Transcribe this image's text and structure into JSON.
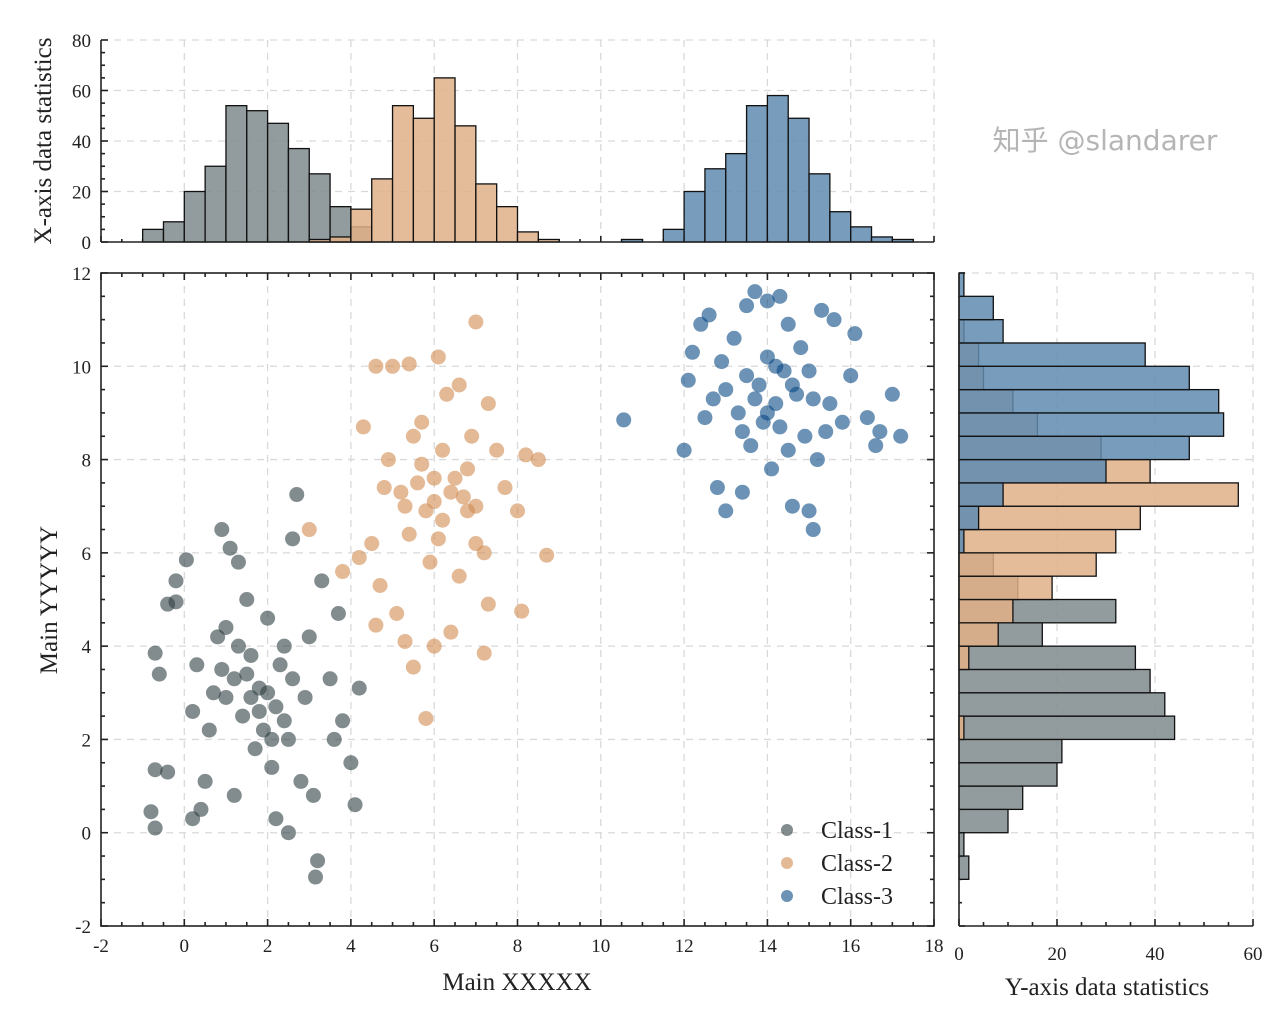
{
  "chart_data": [
    {
      "type": "scatter",
      "xlabel": "Main XXXXX",
      "ylabel": "Main YYYYY",
      "xlim": [
        -2,
        18
      ],
      "ylim": [
        -2,
        12
      ],
      "xticks": [
        "-2",
        "0",
        "2",
        "4",
        "6",
        "8",
        "10",
        "12",
        "14",
        "16",
        "18"
      ],
      "yticks": [
        "-2",
        "0",
        "2",
        "4",
        "6",
        "8",
        "10",
        "12"
      ],
      "grid": true,
      "legend_position": "bottom-right",
      "series": [
        {
          "name": "Class-1",
          "color": "#2e3f42",
          "points": [
            [
              -0.7,
              0.1
            ],
            [
              -0.8,
              0.45
            ],
            [
              -0.7,
              1.35
            ],
            [
              -0.4,
              1.3
            ],
            [
              -0.7,
              3.85
            ],
            [
              -0.6,
              3.4
            ],
            [
              -0.4,
              4.9
            ],
            [
              -0.2,
              4.95
            ],
            [
              -0.2,
              5.4
            ],
            [
              0.05,
              5.85
            ],
            [
              0.2,
              0.3
            ],
            [
              0.2,
              2.6
            ],
            [
              0.4,
              0.5
            ],
            [
              0.5,
              1.1
            ],
            [
              0.3,
              3.6
            ],
            [
              0.8,
              4.2
            ],
            [
              0.9,
              6.5
            ],
            [
              1.1,
              6.1
            ],
            [
              1.3,
              5.8
            ],
            [
              1.5,
              5.0
            ],
            [
              1.0,
              2.9
            ],
            [
              1.2,
              3.3
            ],
            [
              1.4,
              2.5
            ],
            [
              1.6,
              3.8
            ],
            [
              1.8,
              3.1
            ],
            [
              1.9,
              2.2
            ],
            [
              2.0,
              4.6
            ],
            [
              2.1,
              1.4
            ],
            [
              2.2,
              0.3
            ],
            [
              2.3,
              3.6
            ],
            [
              2.5,
              2.0
            ],
            [
              2.6,
              6.3
            ],
            [
              2.7,
              7.25
            ],
            [
              2.5,
              0.0
            ],
            [
              2.8,
              1.1
            ],
            [
              2.9,
              2.9
            ],
            [
              3.1,
              0.8
            ],
            [
              3.2,
              -0.6
            ],
            [
              3.15,
              -0.95
            ],
            [
              3.3,
              5.4
            ],
            [
              3.5,
              3.3
            ],
            [
              3.6,
              2.0
            ],
            [
              3.7,
              4.7
            ],
            [
              3.8,
              2.4
            ],
            [
              4.0,
              1.5
            ],
            [
              4.1,
              0.6
            ],
            [
              4.2,
              3.1
            ],
            [
              1.0,
              4.4
            ],
            [
              0.7,
              3.0
            ],
            [
              2.4,
              4.0
            ],
            [
              1.7,
              1.8
            ],
            [
              3.0,
              4.2
            ],
            [
              1.2,
              0.8
            ],
            [
              0.6,
              2.2
            ],
            [
              2.2,
              2.7
            ],
            [
              1.5,
              3.4
            ],
            [
              2.0,
              3.0
            ],
            [
              1.8,
              2.6
            ],
            [
              2.4,
              2.4
            ],
            [
              1.3,
              4.0
            ],
            [
              2.6,
              3.3
            ],
            [
              0.9,
              3.5
            ],
            [
              2.1,
              2.0
            ],
            [
              1.6,
              2.9
            ]
          ]
        },
        {
          "name": "Class-2",
          "color": "#d08b50",
          "points": [
            [
              5.8,
              2.45
            ],
            [
              5.5,
              3.55
            ],
            [
              5.3,
              4.1
            ],
            [
              6.0,
              4.0
            ],
            [
              6.4,
              4.3
            ],
            [
              7.2,
              3.85
            ],
            [
              7.3,
              4.9
            ],
            [
              8.1,
              4.75
            ],
            [
              4.6,
              4.45
            ],
            [
              3.0,
              6.5
            ],
            [
              3.8,
              5.6
            ],
            [
              4.2,
              5.9
            ],
            [
              4.5,
              6.2
            ],
            [
              4.8,
              7.4
            ],
            [
              4.9,
              8.0
            ],
            [
              4.6,
              10.0
            ],
            [
              5.0,
              10.0
            ],
            [
              5.4,
              10.05
            ],
            [
              6.1,
              10.2
            ],
            [
              7.0,
              10.95
            ],
            [
              5.7,
              8.8
            ],
            [
              6.3,
              9.4
            ],
            [
              6.6,
              9.6
            ],
            [
              6.9,
              8.5
            ],
            [
              7.3,
              9.2
            ],
            [
              7.5,
              8.2
            ],
            [
              8.2,
              8.1
            ],
            [
              8.5,
              8.0
            ],
            [
              8.7,
              5.95
            ],
            [
              8.0,
              6.9
            ],
            [
              7.7,
              7.4
            ],
            [
              5.2,
              7.3
            ],
            [
              5.6,
              7.5
            ],
            [
              6.0,
              7.1
            ],
            [
              6.2,
              6.7
            ],
            [
              6.5,
              7.6
            ],
            [
              6.8,
              6.9
            ],
            [
              5.4,
              6.4
            ],
            [
              5.9,
              5.8
            ],
            [
              6.6,
              5.5
            ],
            [
              7.0,
              6.2
            ],
            [
              6.2,
              8.2
            ],
            [
              5.5,
              8.5
            ],
            [
              4.3,
              8.7
            ],
            [
              4.7,
              5.3
            ],
            [
              5.1,
              4.7
            ],
            [
              6.8,
              7.8
            ],
            [
              7.2,
              6.0
            ],
            [
              5.8,
              6.9
            ],
            [
              6.4,
              7.3
            ],
            [
              6.0,
              7.6
            ],
            [
              5.3,
              7.0
            ],
            [
              6.7,
              7.2
            ],
            [
              6.1,
              6.3
            ],
            [
              5.7,
              7.9
            ],
            [
              7.0,
              7.0
            ]
          ]
        },
        {
          "name": "Class-3",
          "color": "#0a4a85",
          "points": [
            [
              10.55,
              8.85
            ],
            [
              12.0,
              8.2
            ],
            [
              12.1,
              9.7
            ],
            [
              12.2,
              10.3
            ],
            [
              12.5,
              8.9
            ],
            [
              12.4,
              10.9
            ],
            [
              12.8,
              7.4
            ],
            [
              12.6,
              11.1
            ],
            [
              13.0,
              6.9
            ],
            [
              13.4,
              7.3
            ],
            [
              13.5,
              11.3
            ],
            [
              13.7,
              11.6
            ],
            [
              14.0,
              11.4
            ],
            [
              14.3,
              11.5
            ],
            [
              14.5,
              10.9
            ],
            [
              14.6,
              7.0
            ],
            [
              15.0,
              6.9
            ],
            [
              15.1,
              6.5
            ],
            [
              15.3,
              11.2
            ],
            [
              15.6,
              11.0
            ],
            [
              16.1,
              10.7
            ],
            [
              16.0,
              9.8
            ],
            [
              16.4,
              8.9
            ],
            [
              16.6,
              8.3
            ],
            [
              16.7,
              8.6
            ],
            [
              17.0,
              9.4
            ],
            [
              17.2,
              8.5
            ],
            [
              15.2,
              8.0
            ],
            [
              14.9,
              8.5
            ],
            [
              14.2,
              9.2
            ],
            [
              13.8,
              9.6
            ],
            [
              13.9,
              8.8
            ],
            [
              14.4,
              9.9
            ],
            [
              13.3,
              9.0
            ],
            [
              13.0,
              9.5
            ],
            [
              14.7,
              9.4
            ],
            [
              15.5,
              9.2
            ],
            [
              15.8,
              8.8
            ],
            [
              13.6,
              8.3
            ],
            [
              14.1,
              7.8
            ],
            [
              12.9,
              10.1
            ],
            [
              14.8,
              10.4
            ],
            [
              13.2,
              10.6
            ],
            [
              15.0,
              9.9
            ],
            [
              14.5,
              8.2
            ],
            [
              13.5,
              9.8
            ],
            [
              14.0,
              10.2
            ],
            [
              15.4,
              8.6
            ],
            [
              12.7,
              9.3
            ],
            [
              14.3,
              8.7
            ],
            [
              14.0,
              9.0
            ],
            [
              13.7,
              9.3
            ],
            [
              14.6,
              9.6
            ],
            [
              13.4,
              8.6
            ],
            [
              14.2,
              10.0
            ],
            [
              15.1,
              9.3
            ]
          ]
        }
      ]
    },
    {
      "type": "bar",
      "orientation": "vertical",
      "ylabel": "X-axis data statistics",
      "xlim": [
        -2,
        18
      ],
      "ylim": [
        0,
        80
      ],
      "yticks": [
        "0",
        "20",
        "40",
        "60",
        "80"
      ],
      "bin_width": 0.5,
      "grid": true,
      "series": [
        {
          "name": "Class-1",
          "color": "#7f8a8c",
          "bin_starts": [
            -1,
            -0.5,
            0,
            0.5,
            1,
            1.5,
            2,
            2.5,
            3,
            3.5,
            4
          ],
          "values": [
            5,
            8,
            20,
            30,
            54,
            52,
            47,
            37,
            27,
            14,
            6
          ]
        },
        {
          "name": "Class-2",
          "color": "#e0b088",
          "bin_starts": [
            3,
            3.5,
            4,
            4.5,
            5,
            5.5,
            6,
            6.5,
            7,
            7.5,
            8,
            8.5
          ],
          "values": [
            1,
            2,
            13,
            25,
            54,
            49,
            65,
            46,
            23,
            14,
            4,
            1
          ]
        },
        {
          "name": "Class-3",
          "color": "#5f8bb0",
          "bin_starts": [
            10.5,
            11.5,
            12,
            12.5,
            13,
            13.5,
            14,
            14.5,
            15,
            15.5,
            16,
            16.5,
            17
          ],
          "values": [
            1,
            5,
            20,
            29,
            35,
            54,
            58,
            49,
            27,
            12,
            6,
            2,
            1
          ]
        }
      ]
    },
    {
      "type": "bar",
      "orientation": "horizontal",
      "xlabel": "Y-axis data statistics",
      "xlim": [
        0,
        60
      ],
      "ylim": [
        -2,
        12
      ],
      "xticks": [
        "0",
        "20",
        "40",
        "60"
      ],
      "bin_width": 0.5,
      "grid": true,
      "series": [
        {
          "name": "Class-1",
          "color": "#7f8a8c",
          "bin_starts": [
            -1,
            -0.5,
            0,
            0.5,
            1,
            1.5,
            2,
            2.5,
            3,
            3.5,
            4,
            4.5,
            5,
            5.5
          ],
          "values": [
            2,
            1,
            10,
            13,
            20,
            21,
            44,
            42,
            39,
            36,
            17,
            32,
            12,
            7
          ]
        },
        {
          "name": "Class-2",
          "color": "#e0b088",
          "bin_starts": [
            2,
            3.5,
            4,
            4.5,
            5,
            5.5,
            6,
            6.5,
            7,
            7.5,
            8,
            8.5,
            9,
            9.5,
            10,
            10.5
          ],
          "values": [
            1,
            2,
            8,
            11,
            19,
            28,
            32,
            37,
            57,
            39,
            29,
            16,
            11,
            5,
            4,
            1
          ]
        },
        {
          "name": "Class-3",
          "color": "#5f8bb0",
          "bin_starts": [
            6,
            6.5,
            7,
            7.5,
            8,
            8.5,
            9,
            9.5,
            10,
            10.5,
            11,
            11.5
          ],
          "values": [
            1,
            4,
            9,
            30,
            47,
            54,
            53,
            47,
            38,
            9,
            7,
            1
          ]
        }
      ]
    }
  ],
  "watermark": "知乎 @slandarer"
}
